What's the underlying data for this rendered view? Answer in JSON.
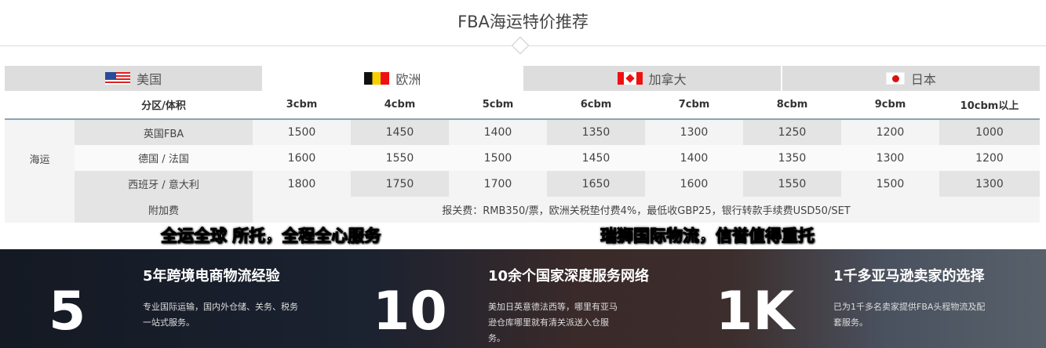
{
  "title": "FBA海运特价推荐",
  "tabs": [
    {
      "label": "美国",
      "flag": "us-flag"
    },
    {
      "label": "欧洲",
      "flag": "belgium-flag"
    },
    {
      "label": "加拿大",
      "flag": "canada-flag"
    },
    {
      "label": "日本",
      "flag": "japan-flag"
    }
  ],
  "active_tab": "欧洲",
  "table": {
    "headers": [
      "分区/体积",
      "3cbm",
      "4cbm",
      "5cbm",
      "6cbm",
      "7cbm",
      "8cbm",
      "9cbm",
      "10cbm以上"
    ],
    "group": "海运",
    "rows": [
      {
        "label": "英国FBA",
        "values": [
          "1500",
          "1450",
          "1400",
          "1350",
          "1300",
          "1250",
          "1200",
          "1000"
        ]
      },
      {
        "label": "德国 / 法国",
        "values": [
          "1600",
          "1550",
          "1500",
          "1450",
          "1400",
          "1350",
          "1300",
          "1200"
        ]
      },
      {
        "label": "西班牙 / 意大利",
        "values": [
          "1800",
          "1750",
          "1700",
          "1650",
          "1600",
          "1550",
          "1500",
          "1300"
        ]
      }
    ],
    "surcharge_label": "附加费",
    "surcharge": "报关费：RMB350/票，欧洲关税垫付费4%，最低收GBP25，银行转款手续费USD50/SET"
  },
  "captions": [
    "全运全球 所托，全程全心服务",
    "瑞狮国际物流，信誉值得重托"
  ],
  "stats": [
    {
      "number": "5",
      "heading": "5年跨境电商物流经验",
      "desc": "专业国际运输，国内外仓储、关务、税务一站式服务。"
    },
    {
      "number": "10",
      "heading": "10余个国家深度服务网络",
      "desc": "美加日英意德法西等，哪里有亚马逊仓库哪里就有清关派送入仓服务。"
    },
    {
      "number": "1K",
      "heading": "1千多亚马逊卖家的选择",
      "desc": "已为1千多名卖家提供FBA头程物流及配套服务。"
    }
  ]
}
